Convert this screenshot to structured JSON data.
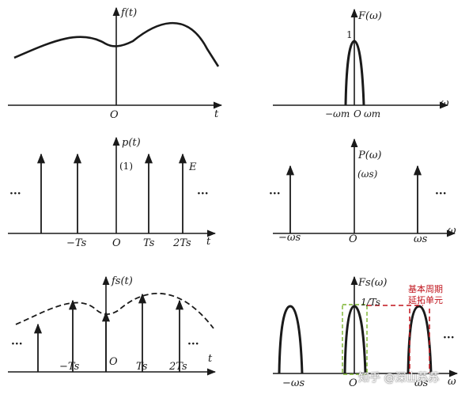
{
  "colors": {
    "ink": "#1a1a1a",
    "annotation_red": "#c0141c",
    "annotation_green": "#7ab32e"
  },
  "panels": {
    "time_signal": {
      "ylabel": "f(t)",
      "origin": "O",
      "xlabel": "t"
    },
    "freq_signal": {
      "ylabel": "F(ω)",
      "peak": "1",
      "xlabel": "ω",
      "tick_neg": "−ωm",
      "origin": "O",
      "tick_pos": "ωm"
    },
    "time_impulses": {
      "ylabel": "p(t)",
      "weight": "(1)",
      "amplitude": "E",
      "ellipsis_left": "···",
      "ellipsis_right": "···",
      "tick_neg": "−Ts",
      "origin": "O",
      "tick_1": "Ts",
      "tick_2": "2Ts",
      "xlabel": "t"
    },
    "freq_impulses": {
      "ylabel": "P(ω)",
      "weight": "(ωs)",
      "ellipsis_left": "···",
      "ellipsis_right": "···",
      "tick_neg": "−ωs",
      "origin": "O",
      "tick_pos": "ωs",
      "xlabel": "ω"
    },
    "time_sampled": {
      "ylabel": "fs(t)",
      "ellipsis_left": "···",
      "ellipsis_right": "···",
      "tick_neg": "−Ts",
      "origin": "O",
      "tick_1": "Ts",
      "tick_2": "2Ts",
      "xlabel": "t"
    },
    "freq_sampled": {
      "ylabel": "Fs(ω)",
      "peak": "1/Ts",
      "annotation_line1": "基本周期",
      "annotation_line2": "延拓单元",
      "ellipsis_right": "···",
      "tick_neg": "−ωs",
      "origin": "O",
      "tick_pos": "ωs",
      "xlabel": "ω"
    }
  },
  "watermark": "知乎 @深山苏苏"
}
